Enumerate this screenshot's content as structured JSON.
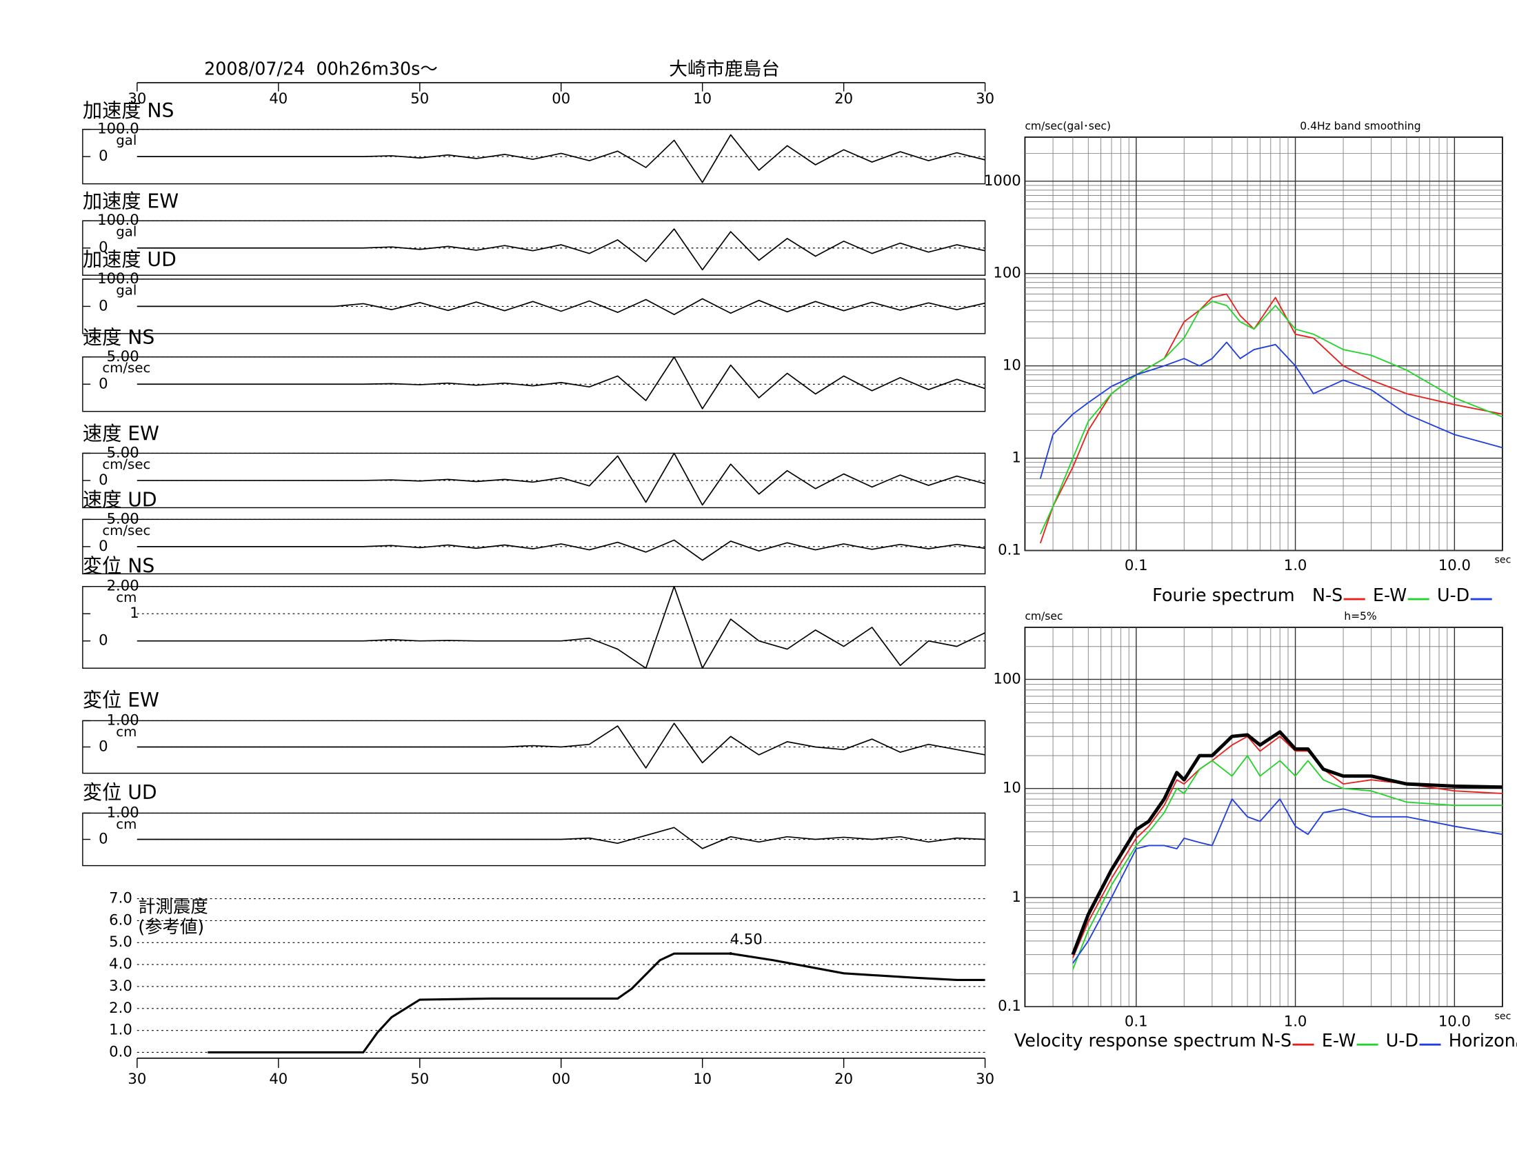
{
  "header": {
    "datetime": "2008/07/24  00h26m30s〜",
    "station": "大崎市鹿島台"
  },
  "chart_data": [
    {
      "type": "axis",
      "xlim": [
        0,
        60
      ],
      "xticks": [
        {
          "value": 0,
          "label": "30"
        },
        {
          "value": 10,
          "label": "40"
        },
        {
          "value": 20,
          "label": "50"
        },
        {
          "value": 30,
          "label": "00"
        },
        {
          "value": 40,
          "label": "10"
        },
        {
          "value": 50,
          "label": "20"
        },
        {
          "value": 60,
          "label": "30"
        }
      ]
    },
    {
      "type": "line",
      "title": "加速度 NS",
      "y_unit": "gal",
      "xlim": [
        0,
        60
      ],
      "ylim": [
        -100,
        100
      ],
      "yticks": [
        {
          "value": 100,
          "label": "100.0"
        },
        0
      ],
      "x": [
        0,
        2,
        4,
        6,
        8,
        10,
        12,
        14,
        16,
        18,
        20,
        22,
        24,
        26,
        28,
        30,
        32,
        34,
        36,
        38,
        40,
        42,
        44,
        46,
        48,
        50,
        52,
        54,
        56,
        58,
        60
      ],
      "values": [
        0,
        0,
        0,
        0,
        0,
        0,
        0,
        0,
        0,
        3,
        -5,
        6,
        -7,
        8,
        -10,
        12,
        -15,
        20,
        -40,
        60,
        -95,
        80,
        -50,
        40,
        -30,
        25,
        -20,
        18,
        -15,
        14,
        -12
      ]
    },
    {
      "type": "line",
      "title": "加速度 EW",
      "y_unit": "gal",
      "xlim": [
        0,
        60
      ],
      "ylim": [
        -100,
        100
      ],
      "yticks": [
        {
          "value": 100,
          "label": "100.0"
        },
        0
      ],
      "x": [
        0,
        2,
        4,
        6,
        8,
        10,
        12,
        14,
        16,
        18,
        20,
        22,
        24,
        26,
        28,
        30,
        32,
        34,
        36,
        38,
        40,
        42,
        44,
        46,
        48,
        50,
        52,
        54,
        56,
        58,
        60
      ],
      "values": [
        0,
        0,
        0,
        0,
        0,
        0,
        0,
        0,
        0,
        4,
        -5,
        6,
        -8,
        9,
        -10,
        12,
        -20,
        30,
        -50,
        70,
        -80,
        60,
        -45,
        35,
        -30,
        25,
        -20,
        18,
        -15,
        12,
        -10
      ]
    },
    {
      "type": "line",
      "title": "加速度 UD",
      "y_unit": "gal",
      "xlim": [
        0,
        60
      ],
      "ylim": [
        -100,
        100
      ],
      "yticks": [
        {
          "value": 100,
          "label": "100.0"
        },
        0
      ],
      "x": [
        0,
        2,
        4,
        6,
        8,
        10,
        12,
        14,
        16,
        18,
        20,
        22,
        24,
        26,
        28,
        30,
        32,
        34,
        36,
        38,
        40,
        42,
        44,
        46,
        48,
        50,
        52,
        54,
        56,
        58,
        60
      ],
      "values": [
        0,
        0,
        0,
        0,
        0,
        0,
        0,
        0,
        10,
        -12,
        14,
        -15,
        16,
        -16,
        18,
        -18,
        20,
        -22,
        25,
        -30,
        28,
        -25,
        22,
        -20,
        18,
        -16,
        15,
        -14,
        13,
        -12,
        12
      ]
    },
    {
      "type": "line",
      "title": "速度 NS",
      "y_unit": "cm/sec",
      "xlim": [
        0,
        60
      ],
      "ylim": [
        -5,
        5
      ],
      "yticks": [
        {
          "value": 5,
          "label": "5.00"
        },
        0
      ],
      "x": [
        0,
        2,
        4,
        6,
        8,
        10,
        12,
        14,
        16,
        18,
        20,
        22,
        24,
        26,
        28,
        30,
        32,
        34,
        36,
        38,
        40,
        42,
        44,
        46,
        48,
        50,
        52,
        54,
        56,
        58,
        60
      ],
      "values": [
        0,
        0,
        0,
        0,
        0,
        0,
        0,
        0,
        0,
        0.1,
        -0.1,
        0.2,
        -0.2,
        0.2,
        -0.3,
        0.3,
        -0.5,
        1.5,
        -3,
        5,
        -4.5,
        3.5,
        -2.5,
        2,
        -1.8,
        1.5,
        -1.2,
        1.2,
        -1,
        0.9,
        -0.8
      ]
    },
    {
      "type": "line",
      "title": "速度 EW",
      "y_unit": "cm/sec",
      "xlim": [
        0,
        60
      ],
      "ylim": [
        -5,
        5
      ],
      "yticks": [
        {
          "value": 5,
          "label": "5.00"
        },
        0
      ],
      "x": [
        0,
        2,
        4,
        6,
        8,
        10,
        12,
        14,
        16,
        18,
        20,
        22,
        24,
        26,
        28,
        30,
        32,
        34,
        36,
        38,
        40,
        42,
        44,
        46,
        48,
        50,
        52,
        54,
        56,
        58,
        60
      ],
      "values": [
        0,
        0,
        0,
        0,
        0,
        0,
        0,
        0,
        0,
        0.1,
        -0.1,
        0.2,
        -0.2,
        0.2,
        -0.3,
        0.5,
        -1,
        4.5,
        -4,
        5,
        -4.5,
        3,
        -2.5,
        1.8,
        -1.5,
        1.2,
        -1.2,
        1,
        -0.9,
        0.8,
        -0.6
      ]
    },
    {
      "type": "line",
      "title": "速度 UD",
      "y_unit": "cm/sec",
      "xlim": [
        0,
        60
      ],
      "ylim": [
        -5,
        5
      ],
      "yticks": [
        {
          "value": 5,
          "label": "5.00"
        },
        0
      ],
      "x": [
        0,
        2,
        4,
        6,
        8,
        10,
        12,
        14,
        16,
        18,
        20,
        22,
        24,
        26,
        28,
        30,
        32,
        34,
        36,
        38,
        40,
        42,
        44,
        46,
        48,
        50,
        52,
        54,
        56,
        58,
        60
      ],
      "values": [
        0,
        0,
        0,
        0,
        0,
        0,
        0,
        0,
        0,
        0.2,
        -0.2,
        0.3,
        -0.3,
        0.3,
        -0.4,
        0.5,
        -0.6,
        0.8,
        -1,
        1.2,
        -2.5,
        1,
        -0.8,
        0.7,
        -0.6,
        0.5,
        -0.5,
        0.4,
        -0.4,
        0.4,
        -0.3
      ]
    },
    {
      "type": "line",
      "title": "変位 NS",
      "y_unit": "cm",
      "xlim": [
        0,
        60
      ],
      "ylim": [
        -1,
        2
      ],
      "yticks": [
        {
          "value": 2,
          "label": "2.00"
        },
        1,
        0
      ],
      "x": [
        0,
        2,
        4,
        6,
        8,
        10,
        12,
        14,
        16,
        18,
        20,
        22,
        24,
        26,
        28,
        30,
        32,
        34,
        36,
        38,
        40,
        42,
        44,
        46,
        48,
        50,
        52,
        54,
        56,
        58,
        60
      ],
      "values": [
        0,
        0,
        0,
        0,
        0,
        0,
        0,
        0,
        0,
        0.05,
        0,
        0.02,
        0,
        0,
        0,
        0,
        0.1,
        -0.3,
        -1,
        2,
        -1,
        0.8,
        0,
        -0.3,
        0.4,
        -0.2,
        0.5,
        -0.9,
        0,
        -0.2,
        0.3
      ]
    },
    {
      "type": "line",
      "title": "変位 EW",
      "y_unit": "cm",
      "xlim": [
        0,
        60
      ],
      "ylim": [
        -1,
        1
      ],
      "yticks": [
        {
          "value": 1,
          "label": "1.00"
        },
        0
      ],
      "x": [
        0,
        2,
        4,
        6,
        8,
        10,
        12,
        14,
        16,
        18,
        20,
        22,
        24,
        26,
        28,
        30,
        32,
        34,
        36,
        38,
        40,
        42,
        44,
        46,
        48,
        50,
        52,
        54,
        56,
        58,
        60
      ],
      "values": [
        0,
        0,
        0,
        0,
        0,
        0,
        0,
        0,
        0,
        0,
        0,
        0,
        0,
        0,
        0.05,
        0,
        0.1,
        0.8,
        -0.8,
        0.9,
        -0.6,
        0.4,
        -0.3,
        0.2,
        0,
        -0.1,
        0.3,
        -0.2,
        0.1,
        -0.1,
        -0.3
      ]
    },
    {
      "type": "line",
      "title": "変位 UD",
      "y_unit": "cm",
      "xlim": [
        0,
        60
      ],
      "ylim": [
        -1,
        1
      ],
      "yticks": [
        {
          "value": 1,
          "label": "1.00"
        },
        0
      ],
      "x": [
        0,
        2,
        4,
        6,
        8,
        10,
        12,
        14,
        16,
        18,
        20,
        22,
        24,
        26,
        28,
        30,
        32,
        34,
        36,
        38,
        40,
        42,
        44,
        46,
        48,
        50,
        52,
        54,
        56,
        58,
        60
      ],
      "values": [
        0,
        0,
        0,
        0,
        0,
        0,
        0,
        0,
        0,
        0,
        0,
        0,
        0,
        0,
        0,
        0,
        0.05,
        -0.15,
        0.15,
        0.45,
        -0.35,
        0.1,
        -0.1,
        0.1,
        0,
        0.08,
        0,
        0.1,
        -0.1,
        0.05,
        0
      ]
    },
    {
      "type": "line",
      "title": "計測震度",
      "subtitle": "(参考値)",
      "xlim": [
        0,
        60
      ],
      "ylim": [
        0,
        7
      ],
      "xticks": [
        {
          "value": 0,
          "label": "30"
        },
        {
          "value": 10,
          "label": "40"
        },
        {
          "value": 20,
          "label": "50"
        },
        {
          "value": 30,
          "label": "00"
        },
        {
          "value": 40,
          "label": "10"
        },
        {
          "value": 50,
          "label": "20"
        },
        {
          "value": 60,
          "label": "30"
        }
      ],
      "yticks": [
        {
          "value": 0,
          "label": "0.0"
        },
        {
          "value": 1,
          "label": "1.0"
        },
        {
          "value": 2,
          "label": "2.0"
        },
        {
          "value": 3,
          "label": "3.0"
        },
        {
          "value": 4,
          "label": "4.0"
        },
        {
          "value": 5,
          "label": "5.0"
        },
        {
          "value": 6,
          "label": "6.0"
        },
        {
          "value": 7,
          "label": "7.0"
        }
      ],
      "x": [
        5,
        16,
        17,
        18,
        19,
        20,
        25,
        34,
        35,
        37,
        38,
        42,
        45,
        50,
        55,
        58,
        60
      ],
      "values": [
        0,
        0,
        0.9,
        1.6,
        2.0,
        2.4,
        2.45,
        2.45,
        2.9,
        4.2,
        4.5,
        4.5,
        4.2,
        3.6,
        3.4,
        3.3,
        3.3
      ],
      "annotation": {
        "x": 42,
        "value": 4.5,
        "label": "4.50"
      }
    },
    {
      "type": "line",
      "log_scale": true,
      "title": "Fourie spectrum",
      "y_unit": "cm/sec(gal･sec)",
      "note": "0.4Hz band smoothing",
      "x_unit": "sec",
      "xlim": [
        0.02,
        20
      ],
      "ylim": [
        0.1,
        3000
      ],
      "xticks": [
        0.1,
        {
          "value": 1,
          "label": "1.0"
        },
        {
          "value": 10,
          "label": "10.0"
        }
      ],
      "yticks": [
        0.1,
        1,
        10,
        100,
        1000
      ],
      "xminorticks": [
        0.03,
        0.04,
        0.05,
        0.06,
        0.07,
        0.08,
        0.09,
        0.2,
        0.3,
        0.4,
        0.5,
        0.6,
        0.7,
        0.8,
        0.9,
        2,
        3,
        4,
        5,
        6,
        7,
        8,
        9
      ],
      "yminorticks": [
        0.2,
        0.3,
        0.4,
        0.5,
        0.6,
        0.7,
        0.8,
        0.9,
        2,
        3,
        4,
        5,
        6,
        7,
        8,
        9,
        20,
        30,
        40,
        50,
        60,
        70,
        80,
        90,
        200,
        300,
        400,
        500,
        600,
        700,
        800,
        900,
        2000
      ],
      "x": [
        0.025,
        0.03,
        0.04,
        0.05,
        0.07,
        0.1,
        0.15,
        0.2,
        0.25,
        0.3,
        0.37,
        0.45,
        0.55,
        0.75,
        1.0,
        1.3,
        2,
        3,
        5,
        10,
        20
      ],
      "series": [
        {
          "name": "N-S",
          "color": "#e8201c",
          "values": [
            0.12,
            0.3,
            0.8,
            2,
            5,
            8,
            12,
            30,
            40,
            55,
            60,
            35,
            25,
            55,
            22,
            20,
            10,
            7,
            5,
            3.8,
            3.0
          ]
        },
        {
          "name": "E-W",
          "color": "#22d42a",
          "values": [
            0.15,
            0.3,
            1,
            2.5,
            5,
            8,
            12,
            20,
            40,
            50,
            45,
            30,
            25,
            45,
            25,
            22,
            15,
            13,
            9,
            4.5,
            2.8
          ]
        },
        {
          "name": "U-D",
          "color": "#1f3de0",
          "values": [
            0.6,
            1.8,
            3,
            4,
            6,
            8,
            10,
            12,
            10,
            12,
            18,
            12,
            15,
            17,
            10,
            5,
            7,
            5.5,
            3,
            1.8,
            1.3
          ]
        }
      ]
    },
    {
      "type": "line",
      "log_scale": true,
      "title": "Velocity response spectrum",
      "y_unit": "cm/sec",
      "note": "h=5%",
      "x_unit": "sec",
      "xlim": [
        0.02,
        20
      ],
      "ylim": [
        0.1,
        300
      ],
      "xticks": [
        0.1,
        {
          "value": 1,
          "label": "1.0"
        },
        {
          "value": 10,
          "label": "10.0"
        }
      ],
      "yticks": [
        0.1,
        1,
        10,
        100
      ],
      "xminorticks": [
        0.03,
        0.04,
        0.05,
        0.06,
        0.07,
        0.08,
        0.09,
        0.2,
        0.3,
        0.4,
        0.5,
        0.6,
        0.7,
        0.8,
        0.9,
        2,
        3,
        4,
        5,
        6,
        7,
        8,
        9
      ],
      "yminorticks": [
        0.2,
        0.3,
        0.4,
        0.5,
        0.6,
        0.7,
        0.8,
        0.9,
        2,
        3,
        4,
        5,
        6,
        7,
        8,
        9,
        20,
        30,
        40,
        50,
        60,
        70,
        80,
        90,
        200
      ],
      "x": [
        0.04,
        0.05,
        0.07,
        0.1,
        0.12,
        0.15,
        0.18,
        0.2,
        0.25,
        0.3,
        0.4,
        0.5,
        0.6,
        0.8,
        1,
        1.2,
        1.5,
        2,
        3,
        5,
        10,
        20
      ],
      "series": [
        {
          "name": "N-S",
          "color": "#e8201c",
          "values": [
            0.28,
            0.6,
            1.5,
            3.5,
            4.5,
            7,
            12,
            11,
            15,
            18,
            25,
            30,
            22,
            30,
            22,
            22,
            15,
            11,
            12,
            11,
            9.5,
            9
          ]
        },
        {
          "name": "E-W",
          "color": "#22d42a",
          "values": [
            0.22,
            0.5,
            1.3,
            3,
            4,
            6,
            10,
            9,
            15,
            18,
            13,
            20,
            13,
            18,
            13,
            18,
            12,
            10,
            9.5,
            7.5,
            7,
            7
          ]
        },
        {
          "name": "U-D",
          "color": "#1f3de0",
          "values": [
            0.25,
            0.4,
            1,
            2.8,
            3,
            3,
            2.8,
            3.5,
            3.2,
            3,
            8,
            5.5,
            5,
            8,
            4.5,
            3.8,
            6,
            6.5,
            5.5,
            5.5,
            4.5,
            3.8
          ]
        },
        {
          "name": "Horizon",
          "color": "#000000",
          "bold": true,
          "values": [
            0.3,
            0.7,
            1.8,
            4.2,
            5,
            8,
            14,
            12,
            20,
            20,
            30,
            31,
            25,
            33,
            23,
            23,
            15,
            13,
            13,
            11,
            10.5,
            10.3
          ]
        }
      ]
    }
  ]
}
